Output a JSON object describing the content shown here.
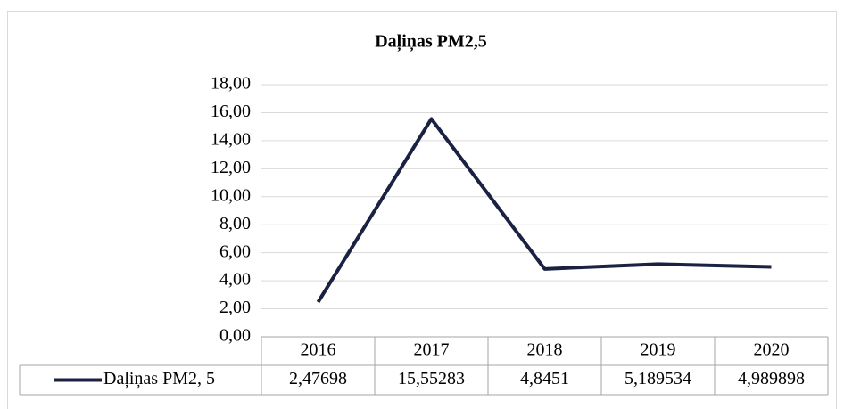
{
  "chart_data": {
    "type": "line",
    "title": "Daļiņas PM2,5",
    "categories": [
      "2016",
      "2017",
      "2018",
      "2019",
      "2020"
    ],
    "series": [
      {
        "name": "Daļiņas PM2, 5",
        "color": "#1b2142",
        "values": [
          2.47698,
          15.55283,
          4.8451,
          5.189534,
          4.989898
        ],
        "value_labels": [
          "2,47698",
          "15,55283",
          "4,8451",
          "5,189534",
          "4,989898"
        ]
      }
    ],
    "ylim": [
      0,
      18
    ],
    "yticks": [
      {
        "value": 0,
        "label": "0,00"
      },
      {
        "value": 2,
        "label": "2,00"
      },
      {
        "value": 4,
        "label": "4,00"
      },
      {
        "value": 6,
        "label": "6,00"
      },
      {
        "value": 8,
        "label": "8,00"
      },
      {
        "value": 10,
        "label": "10,00"
      },
      {
        "value": 12,
        "label": "12,00"
      },
      {
        "value": 14,
        "label": "14,00"
      },
      {
        "value": 16,
        "label": "16,00"
      },
      {
        "value": 18,
        "label": "18,00"
      }
    ],
    "grid": true
  }
}
